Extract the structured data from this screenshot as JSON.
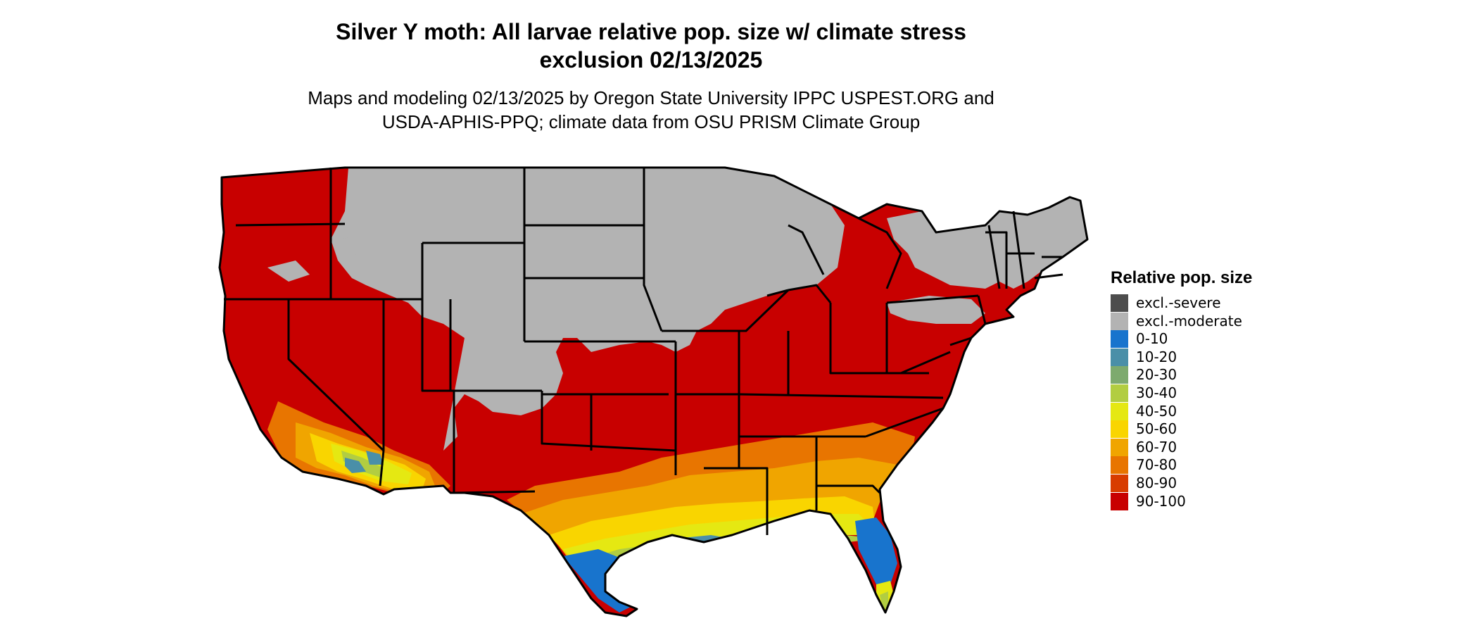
{
  "title": {
    "line1": "Silver Y moth: All larvae relative pop. size w/ climate stress",
    "line2": "exclusion 02/13/2025"
  },
  "subtitle": {
    "line1": "Maps and modeling 02/13/2025 by Oregon State University IPPC USPEST.ORG and",
    "line2": "USDA-APHIS-PPQ; climate data from OSU PRISM Climate Group"
  },
  "legend": {
    "title": "Relative pop. size",
    "items": [
      {
        "label": "excl.-severe",
        "color": "#4d4d4d"
      },
      {
        "label": "excl.-moderate",
        "color": "#b3b3b3"
      },
      {
        "label": "0-10",
        "color": "#1874cd"
      },
      {
        "label": "10-20",
        "color": "#4a8fa8"
      },
      {
        "label": "20-30",
        "color": "#7daa6e"
      },
      {
        "label": "30-40",
        "color": "#b2cd41"
      },
      {
        "label": "40-50",
        "color": "#e5e812"
      },
      {
        "label": "50-60",
        "color": "#f9d500"
      },
      {
        "label": "60-70",
        "color": "#f0a500"
      },
      {
        "label": "70-80",
        "color": "#e87500"
      },
      {
        "label": "80-90",
        "color": "#d83c00"
      },
      {
        "label": "90-100",
        "color": "#c80000"
      }
    ]
  },
  "map": {
    "region": "conterminous-united-states",
    "colors": {
      "high": "#c80000",
      "excluded_moderate": "#b3b3b3",
      "border": "#000000"
    }
  }
}
